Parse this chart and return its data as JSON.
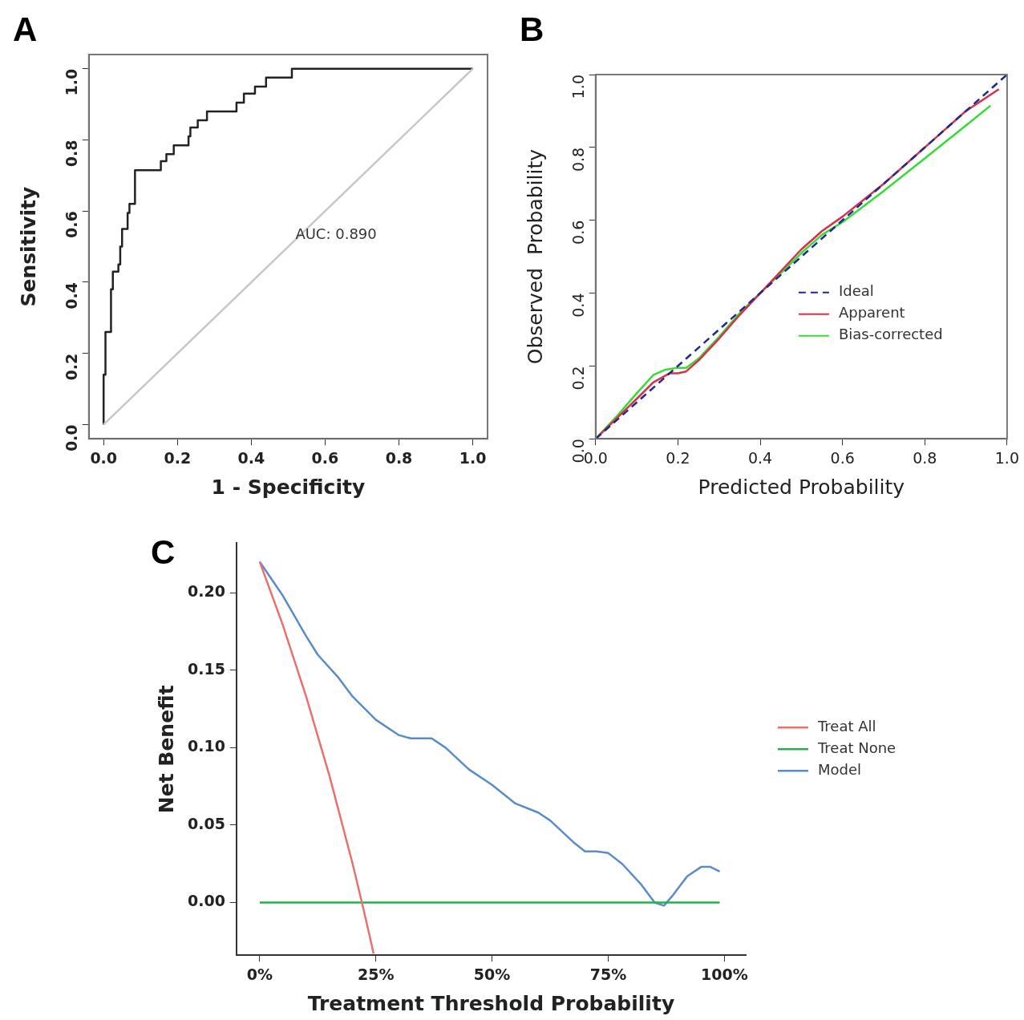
{
  "chart_data": [
    {
      "type": "step",
      "title": "A",
      "xlabel": "1 - Specificity",
      "ylabel": "Sensitivity",
      "xlim": [
        -0.04,
        1.04
      ],
      "ylim": [
        -0.04,
        1.04
      ],
      "xticks": [
        {
          "value": 0,
          "label": "0.0"
        },
        0.2,
        0.4,
        0.6,
        0.8,
        {
          "value": 1,
          "label": "1.0"
        }
      ],
      "yticks": [
        {
          "value": 0,
          "label": "0.0"
        },
        0.2,
        0.4,
        0.6,
        0.8,
        {
          "value": 1,
          "label": "1.0"
        }
      ],
      "annotations": [
        "AUC: 0.890"
      ],
      "series": [
        {
          "type": "line",
          "color": "#c8c8c8",
          "x": [
            0,
            1
          ],
          "values": [
            0,
            1
          ]
        },
        {
          "color": "#222222",
          "x": [
            0,
            0,
            0.005,
            0.02,
            0.025,
            0.04,
            0.045,
            0.05,
            0.065,
            0.07,
            0.085,
            0.155,
            0.17,
            0.19,
            0.23,
            0.235,
            0.255,
            0.28,
            0.36,
            0.38,
            0.41,
            0.44,
            0.51,
            1.0
          ],
          "values": [
            0,
            0.14,
            0.26,
            0.38,
            0.43,
            0.45,
            0.5,
            0.55,
            0.595,
            0.62,
            0.715,
            0.74,
            0.76,
            0.785,
            0.81,
            0.835,
            0.855,
            0.88,
            0.905,
            0.93,
            0.95,
            0.975,
            1.0,
            1.0
          ]
        }
      ]
    },
    {
      "type": "line",
      "title": "B",
      "xlabel": "Predicted Probability",
      "ylabel": "Observed  Probability",
      "xlim": [
        0,
        1
      ],
      "ylim": [
        0,
        1
      ],
      "xticks": [
        {
          "value": 0,
          "label": "0.0"
        },
        0.2,
        0.4,
        0.6,
        0.8,
        {
          "value": 1,
          "label": "1.0"
        }
      ],
      "yticks": [
        {
          "value": 0,
          "label": "0.0"
        },
        0.2,
        0.4,
        0.6,
        0.8,
        {
          "value": 1,
          "label": "1.0"
        }
      ],
      "legend": "bottom right",
      "series": [
        {
          "name": "Ideal",
          "color": "#1f2a8c",
          "line_style": "dashed",
          "x": [
            0,
            1
          ],
          "values": [
            0,
            1
          ]
        },
        {
          "name": "Apparent",
          "color": "#d9304a",
          "x": [
            0,
            0.05,
            0.1,
            0.14,
            0.18,
            0.2,
            0.22,
            0.25,
            0.3,
            0.35,
            0.4,
            0.45,
            0.5,
            0.55,
            0.6,
            0.7,
            0.8,
            0.9,
            0.98
          ],
          "values": [
            0,
            0.055,
            0.11,
            0.155,
            0.18,
            0.18,
            0.185,
            0.215,
            0.275,
            0.34,
            0.4,
            0.46,
            0.52,
            0.57,
            0.61,
            0.7,
            0.8,
            0.9,
            0.96
          ]
        },
        {
          "name": "Bias-corrected",
          "color": "#33dd33",
          "x": [
            0,
            0.05,
            0.1,
            0.14,
            0.17,
            0.2,
            0.22,
            0.25,
            0.3,
            0.35,
            0.4,
            0.45,
            0.5,
            0.55,
            0.6,
            0.7,
            0.8,
            0.9,
            0.96
          ],
          "values": [
            0,
            0.06,
            0.125,
            0.175,
            0.19,
            0.195,
            0.195,
            0.22,
            0.28,
            0.345,
            0.4,
            0.455,
            0.51,
            0.56,
            0.595,
            0.68,
            0.77,
            0.86,
            0.915
          ]
        }
      ]
    },
    {
      "type": "line",
      "title": "C",
      "xlabel": "Treatment Threshold Probability",
      "ylabel": "Net Benefit",
      "xlim": [
        -5,
        104.6
      ],
      "ylim": [
        -0.034,
        0.232
      ],
      "xticks": [
        {
          "value": 0,
          "label": "0%"
        },
        {
          "value": 25,
          "label": "25%"
        },
        {
          "value": 50,
          "label": "50%"
        },
        {
          "value": 75,
          "label": "75%"
        },
        {
          "value": 100,
          "label": "100%"
        }
      ],
      "yticks": [
        {
          "value": 0,
          "label": "0.00"
        },
        0.05,
        {
          "value": 0.1,
          "label": "0.10"
        },
        0.15,
        {
          "value": 0.2,
          "label": "0.20"
        }
      ],
      "legend": "right",
      "series": [
        {
          "name": "Treat All",
          "color": "#e8716f",
          "x": [
            0,
            5,
            10,
            15,
            20,
            22,
            24,
            24.5
          ],
          "values": [
            0.22,
            0.179,
            0.133,
            0.082,
            0.025,
            0.0,
            -0.026,
            -0.033
          ]
        },
        {
          "name": "Treat None",
          "color": "#22b14c",
          "x": [
            0,
            99
          ],
          "values": [
            0,
            0
          ]
        },
        {
          "name": "Model",
          "color": "#5b8cc8",
          "x": [
            0,
            5,
            10,
            12.5,
            17,
            20,
            25,
            30,
            32.5,
            37,
            40,
            45,
            50,
            55,
            60,
            62.5,
            67.5,
            70,
            72.5,
            75,
            78,
            82,
            85,
            87,
            89,
            92,
            95,
            97,
            99
          ],
          "values": [
            0.22,
            0.198,
            0.172,
            0.16,
            0.145,
            0.133,
            0.118,
            0.108,
            0.106,
            0.106,
            0.1,
            0.086,
            0.076,
            0.064,
            0.058,
            0.053,
            0.039,
            0.033,
            0.033,
            0.032,
            0.025,
            0.012,
            0.0,
            -0.002,
            0.005,
            0.017,
            0.023,
            0.023,
            0.02
          ]
        }
      ]
    }
  ]
}
